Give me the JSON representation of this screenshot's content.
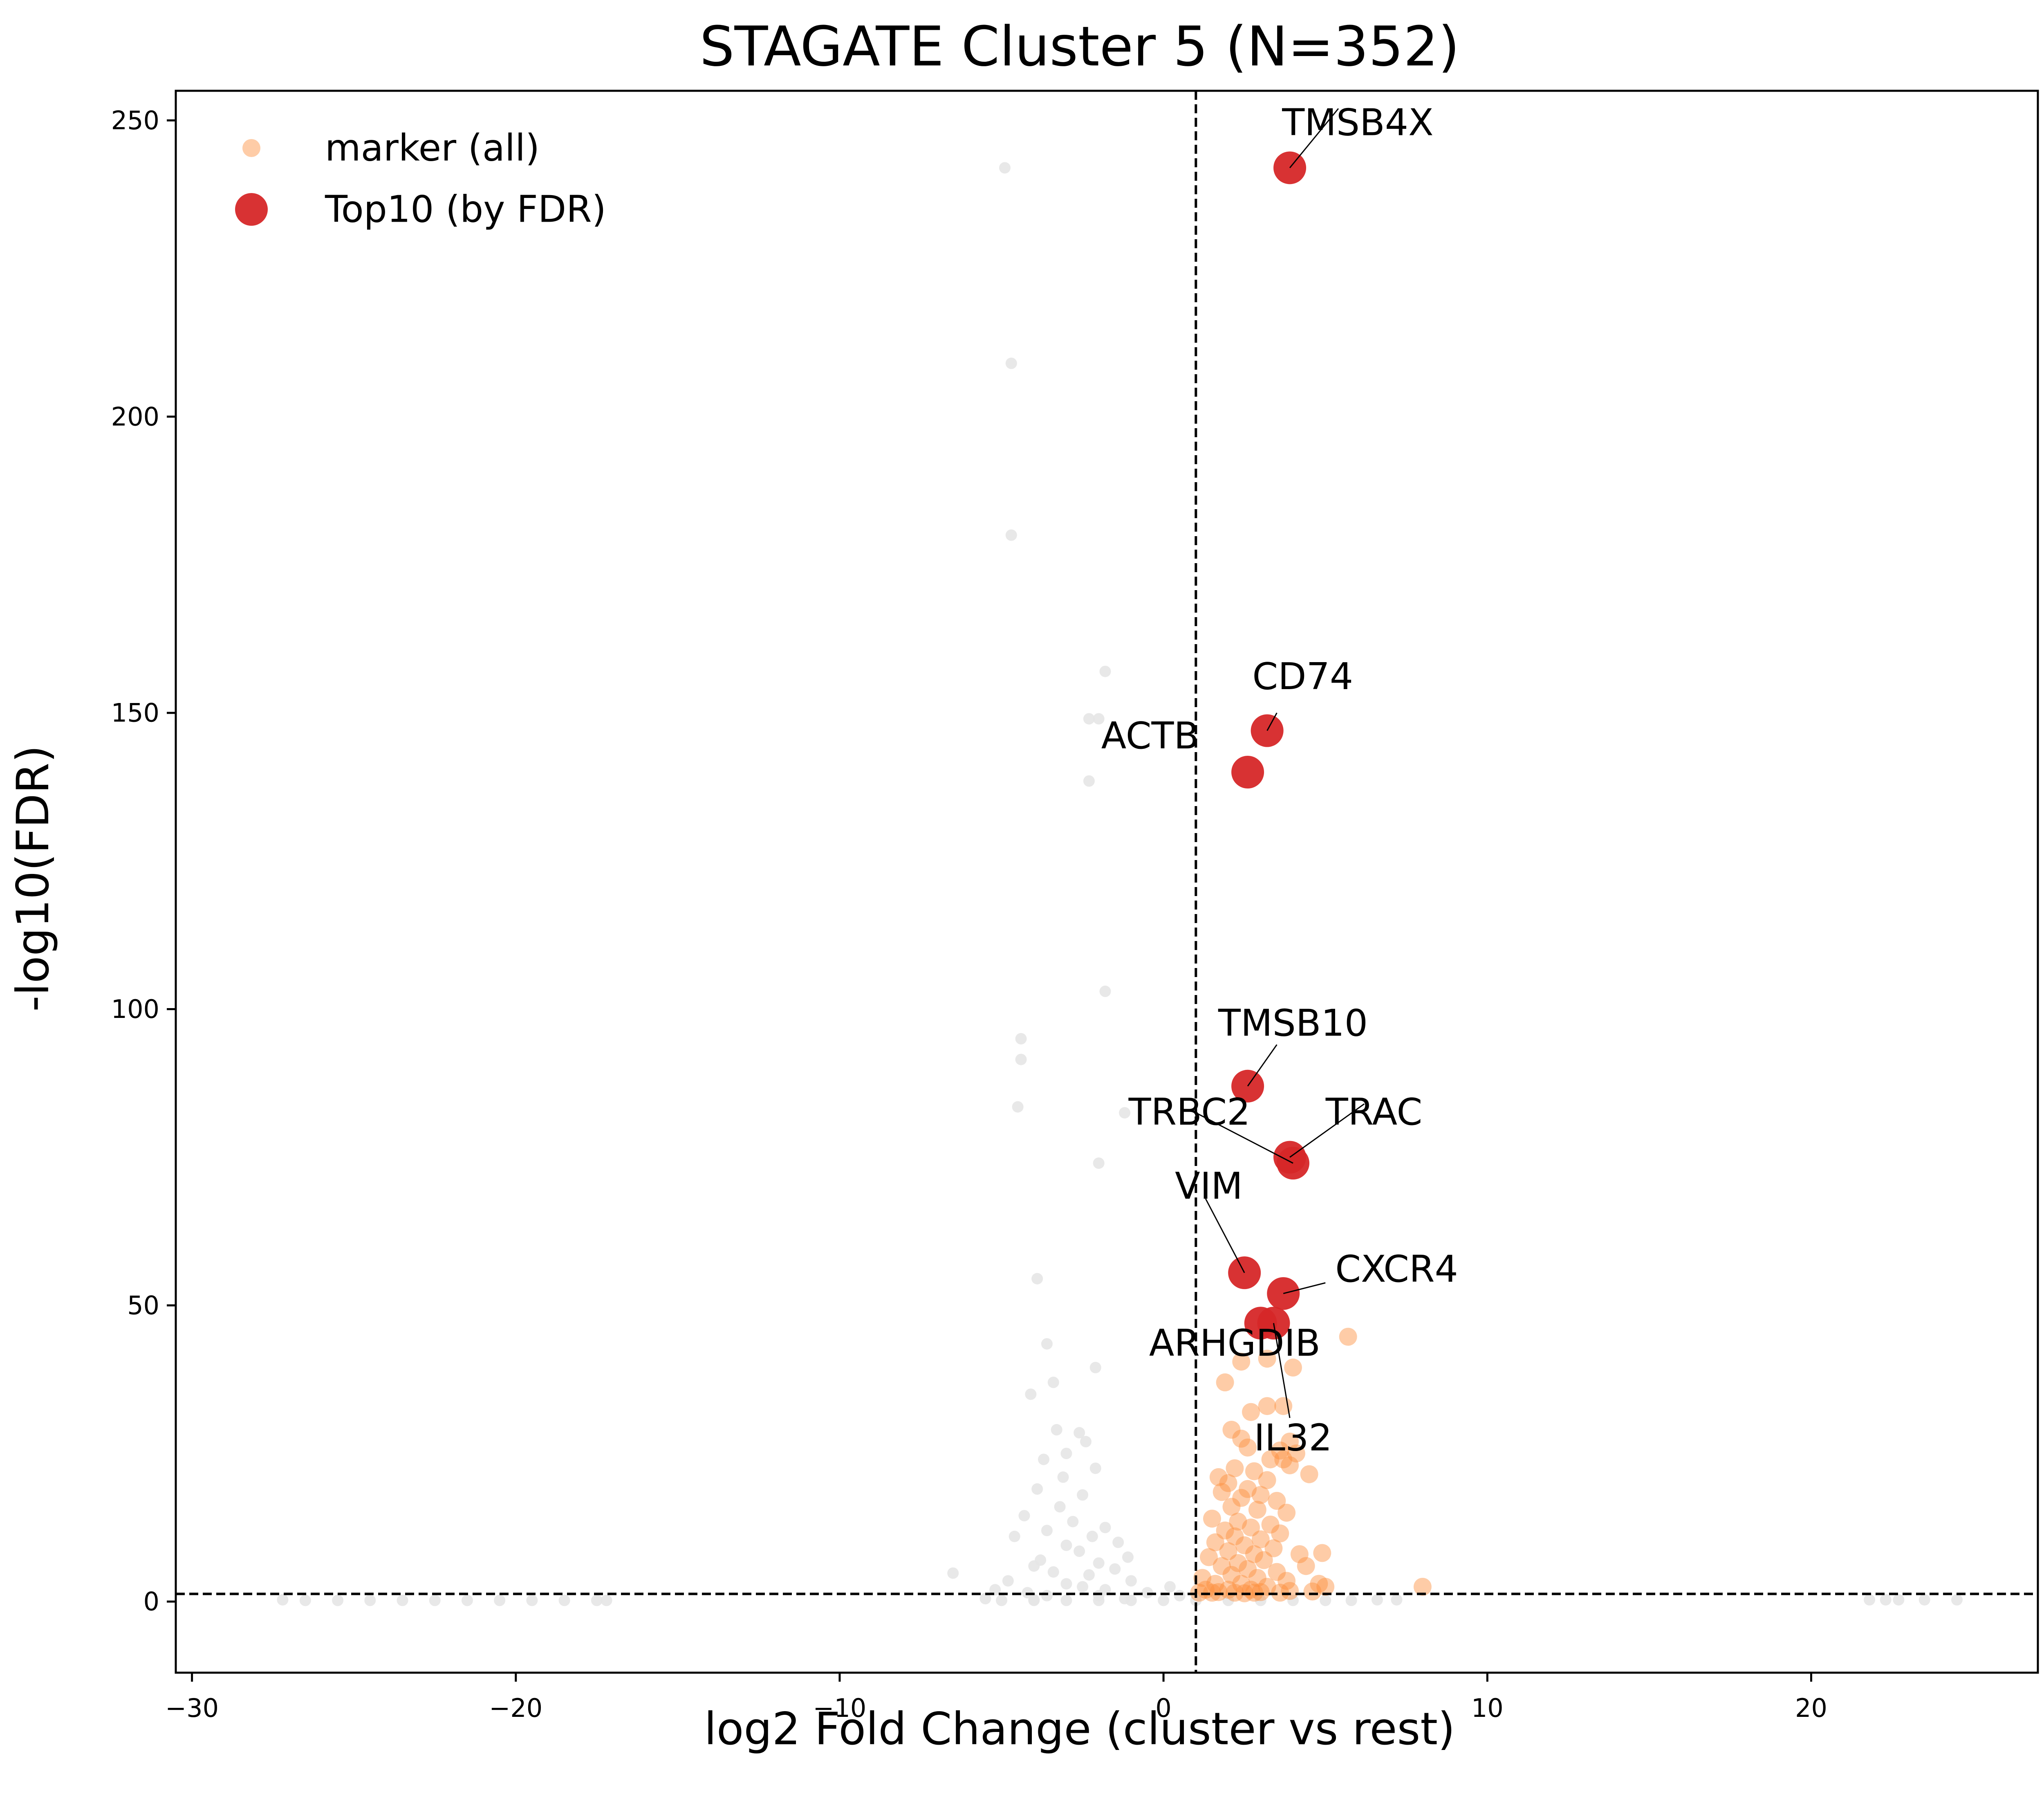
{
  "chart_data": {
    "type": "scatter",
    "title": "STAGATE Cluster 5 (N=352)",
    "xlabel": "log2 Fold Change (cluster vs rest)",
    "ylabel": "-log10(FDR)",
    "xlim": [
      -30.5,
      27
    ],
    "ylim": [
      -12,
      255
    ],
    "xticks": [
      -30,
      -20,
      -10,
      0,
      10,
      20
    ],
    "xtick_labels": [
      "−30",
      "−20",
      "−10",
      "0",
      "10",
      "20"
    ],
    "yticks": [
      0,
      50,
      100,
      150,
      200,
      250
    ],
    "ytick_labels": [
      "0",
      "50",
      "100",
      "150",
      "200",
      "250"
    ],
    "grid": false,
    "legend_position": "top-left",
    "thresholds": {
      "log2fc": 1,
      "neg_log10_fdr": 1.3
    },
    "colors": {
      "background": "#e5e5e5",
      "marker": "#fd8d3c",
      "top10": "#d62728"
    },
    "series": [
      {
        "name": "",
        "role": "background",
        "points": [
          [
            -4.9,
            242
          ],
          [
            -4.7,
            209
          ],
          [
            -4.7,
            180
          ],
          [
            -1.8,
            157
          ],
          [
            -2.3,
            149
          ],
          [
            -2.0,
            149
          ],
          [
            -2.3,
            138.5
          ],
          [
            -1.8,
            103
          ],
          [
            -4.4,
            95
          ],
          [
            -4.4,
            91.5
          ],
          [
            -4.5,
            83.5
          ],
          [
            -1.2,
            82.5
          ],
          [
            -2.0,
            74
          ],
          [
            -3.9,
            54.5
          ],
          [
            -3.6,
            43.5
          ],
          [
            -2.1,
            39.5
          ],
          [
            -3.4,
            37
          ],
          [
            -4.1,
            35
          ],
          [
            -3.3,
            29
          ],
          [
            -2.6,
            28.5
          ],
          [
            -2.4,
            27
          ],
          [
            -3.0,
            25
          ],
          [
            -3.7,
            24
          ],
          [
            -2.1,
            22.5
          ],
          [
            -3.1,
            21
          ],
          [
            -3.9,
            19
          ],
          [
            -2.5,
            18
          ],
          [
            -3.2,
            16
          ],
          [
            -4.3,
            14.5
          ],
          [
            -2.8,
            13.5
          ],
          [
            -1.8,
            12.5
          ],
          [
            -3.6,
            12
          ],
          [
            -2.2,
            11
          ],
          [
            -4.6,
            11
          ],
          [
            -1.4,
            10
          ],
          [
            -3.0,
            9.5
          ],
          [
            -2.6,
            8.5
          ],
          [
            -1.1,
            7.5
          ],
          [
            -3.8,
            7
          ],
          [
            -2.0,
            6.5
          ],
          [
            -4.0,
            6
          ],
          [
            -1.5,
            5.5
          ],
          [
            -3.4,
            5
          ],
          [
            -2.3,
            4.5
          ],
          [
            -6.5,
            4.8
          ],
          [
            -4.8,
            3.5
          ],
          [
            -1.0,
            3.5
          ],
          [
            -3.0,
            3
          ],
          [
            -2.5,
            2.5
          ],
          [
            -1.8,
            2
          ],
          [
            -5.2,
            2
          ],
          [
            -4.2,
            1.5
          ],
          [
            -0.5,
            1.5
          ],
          [
            -3.6,
            1
          ],
          [
            -2.0,
            1
          ],
          [
            0.2,
            2.5
          ],
          [
            0.5,
            1
          ],
          [
            -5.5,
            0.5
          ],
          [
            -4.0,
            0.3
          ],
          [
            -1.2,
            0.5
          ],
          [
            -27.2,
            0.3
          ],
          [
            -26.5,
            0.2
          ],
          [
            -25.5,
            0.2
          ],
          [
            -24.5,
            0.2
          ],
          [
            -23.5,
            0.2
          ],
          [
            -22.5,
            0.2
          ],
          [
            -21.5,
            0.2
          ],
          [
            -20.5,
            0.2
          ],
          [
            -19.5,
            0.2
          ],
          [
            -18.5,
            0.2
          ],
          [
            -17.5,
            0.2
          ],
          [
            -17.2,
            0.2
          ],
          [
            -5.0,
            0.2
          ],
          [
            -4.0,
            0.2
          ],
          [
            -3.0,
            0.2
          ],
          [
            -2.0,
            0.2
          ],
          [
            -1.0,
            0.2
          ],
          [
            0.0,
            0.2
          ],
          [
            1.0,
            0.2
          ],
          [
            2.0,
            0.2
          ],
          [
            3.0,
            0.2
          ],
          [
            4.0,
            0.2
          ],
          [
            5.0,
            0.2
          ],
          [
            5.8,
            0.2
          ],
          [
            6.6,
            0.3
          ],
          [
            7.2,
            0.3
          ],
          [
            21.8,
            0.3
          ],
          [
            22.3,
            0.3
          ],
          [
            22.7,
            0.3
          ],
          [
            23.5,
            0.3
          ],
          [
            24.5,
            0.3
          ]
        ]
      },
      {
        "name": "marker (all)",
        "role": "marker",
        "points": [
          [
            5.7,
            44.7
          ],
          [
            2.4,
            40.5
          ],
          [
            3.2,
            41
          ],
          [
            4.0,
            39.5
          ],
          [
            1.9,
            37
          ],
          [
            3.7,
            33
          ],
          [
            3.2,
            33
          ],
          [
            2.7,
            32
          ],
          [
            2.1,
            29
          ],
          [
            2.4,
            27.5
          ],
          [
            3.9,
            27
          ],
          [
            2.6,
            26
          ],
          [
            3.6,
            25.5
          ],
          [
            4.1,
            25
          ],
          [
            3.3,
            24
          ],
          [
            3.7,
            24
          ],
          [
            3.9,
            23
          ],
          [
            2.2,
            22.5
          ],
          [
            2.8,
            22
          ],
          [
            4.5,
            21.5
          ],
          [
            1.7,
            21
          ],
          [
            2.0,
            20
          ],
          [
            3.2,
            20.5
          ],
          [
            2.6,
            19
          ],
          [
            1.8,
            18.5
          ],
          [
            3.0,
            18
          ],
          [
            2.4,
            17.5
          ],
          [
            3.5,
            17
          ],
          [
            2.1,
            16
          ],
          [
            2.9,
            15.5
          ],
          [
            3.8,
            15
          ],
          [
            1.5,
            14
          ],
          [
            2.3,
            13.5
          ],
          [
            3.3,
            13
          ],
          [
            2.7,
            12.5
          ],
          [
            1.9,
            12
          ],
          [
            3.6,
            11.5
          ],
          [
            2.2,
            11
          ],
          [
            3.0,
            10.5
          ],
          [
            1.6,
            10
          ],
          [
            2.5,
            9.5
          ],
          [
            3.4,
            9
          ],
          [
            4.2,
            8
          ],
          [
            4.9,
            8.2
          ],
          [
            2.0,
            8.5
          ],
          [
            2.8,
            8
          ],
          [
            1.4,
            7.5
          ],
          [
            3.1,
            7
          ],
          [
            2.3,
            6.5
          ],
          [
            1.8,
            6
          ],
          [
            4.4,
            6
          ],
          [
            2.6,
            5.5
          ],
          [
            3.5,
            5
          ],
          [
            2.1,
            4.5
          ],
          [
            1.2,
            4
          ],
          [
            2.9,
            4
          ],
          [
            3.8,
            3.5
          ],
          [
            1.6,
            3
          ],
          [
            2.4,
            3
          ],
          [
            4.8,
            3
          ],
          [
            3.2,
            2.5
          ],
          [
            1.3,
            2
          ],
          [
            2.0,
            2
          ],
          [
            2.7,
            2
          ],
          [
            5.0,
            2.5
          ],
          [
            8.0,
            2.5
          ],
          [
            3.9,
            1.8
          ],
          [
            1.5,
            1.5
          ],
          [
            2.2,
            1.5
          ],
          [
            4.6,
            1.7
          ],
          [
            3.0,
            1.6
          ],
          [
            2.5,
            1.4
          ],
          [
            1.1,
            1.5
          ],
          [
            3.6,
            1.5
          ],
          [
            1.7,
            1.6
          ],
          [
            2.8,
            1.5
          ]
        ]
      },
      {
        "name": "Top10 (by FDR)",
        "role": "top10",
        "points": [
          [
            3.9,
            242
          ],
          [
            3.2,
            147
          ],
          [
            2.6,
            140
          ],
          [
            2.6,
            87
          ],
          [
            3.9,
            75
          ],
          [
            4.0,
            74
          ],
          [
            2.5,
            55.5
          ],
          [
            3.7,
            52
          ],
          [
            3.0,
            47
          ],
          [
            3.4,
            47
          ]
        ],
        "labels": [
          "TMSB4X",
          "CD74",
          "ACTB",
          "TMSB10",
          "TRAC",
          "TRBC2",
          "VIM",
          "CXCR4",
          "ARHGDIB",
          "IL32"
        ]
      }
    ]
  }
}
